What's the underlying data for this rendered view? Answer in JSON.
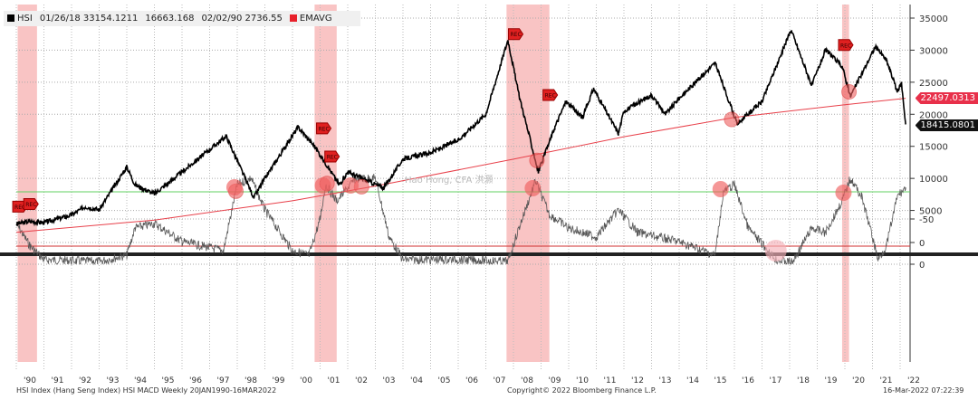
{
  "legend": {
    "series": "HSI",
    "high": "01/26/18 33154.1211",
    "avg": "16663.168",
    "low": "02/02/90 2736.55",
    "ema": "EMAVG"
  },
  "colors": {
    "price": "#000000",
    "ema": "#e8404a",
    "band": "#f7b0b0",
    "green": "#60d060",
    "red": "#d03030"
  },
  "last_labels": {
    "ema": "22497.0313",
    "price": "18415.0801"
  },
  "footer": {
    "left": "HSI Index (Hang Seng Index) HSI MACD  Weekly 20JAN1990-16MAR2022",
    "center": "Copyright© 2022 Bloomberg Finance L.P.",
    "right": "16-Mar-2022 07:22:39"
  },
  "watermark": "Hao Hong, CFA 洪灝",
  "chart_data": [
    {
      "type": "line",
      "title": "HSI",
      "ylim": [
        -1000,
        36000
      ],
      "yticks": [
        0,
        5000,
        10000,
        15000,
        20000,
        25000,
        30000,
        35000
      ],
      "x_tick_labels": [
        "'90",
        "'91",
        "'92",
        "'93",
        "'94",
        "'95",
        "'96",
        "'97",
        "'98",
        "'99",
        "'00",
        "'01",
        "'02",
        "'03",
        "'04",
        "'05",
        "'06",
        "'07",
        "'08",
        "'09",
        "'10",
        "'11",
        "'12",
        "'13",
        "'14",
        "'15",
        "'16",
        "'17",
        "'18",
        "'19",
        "'20",
        "'21",
        "'22"
      ],
      "series": [
        {
          "name": "HSI",
          "points": [
            [
              1990,
              2900
            ],
            [
              1990.5,
              3300
            ],
            [
              1991,
              3100
            ],
            [
              1992,
              4300
            ],
            [
              1992.5,
              5600
            ],
            [
              1993,
              5100
            ],
            [
              1994,
              11800
            ],
            [
              1994.3,
              9000
            ],
            [
              1995,
              7600
            ],
            [
              1996,
              11000
            ],
            [
              1997.6,
              16600
            ],
            [
              1998.6,
              7000
            ],
            [
              1999,
              10000
            ],
            [
              2000.2,
              18000
            ],
            [
              2000.8,
              15000
            ],
            [
              2001.7,
              9000
            ],
            [
              2002,
              11000
            ],
            [
              2003.3,
              8500
            ],
            [
              2004,
              13000
            ],
            [
              2005,
              14000
            ],
            [
              2006,
              16000
            ],
            [
              2007,
              20000
            ],
            [
              2007.8,
              31600
            ],
            [
              2008.2,
              23000
            ],
            [
              2008.9,
              11000
            ],
            [
              2009.5,
              18000
            ],
            [
              2009.9,
              22000
            ],
            [
              2010.5,
              19500
            ],
            [
              2010.9,
              24000
            ],
            [
              2011.8,
              17000
            ],
            [
              2012,
              20500
            ],
            [
              2013,
              23000
            ],
            [
              2013.5,
              20000
            ],
            [
              2014,
              22500
            ],
            [
              2015.3,
              28000
            ],
            [
              2016.1,
              18500
            ],
            [
              2017,
              22000
            ],
            [
              2018.05,
              33154
            ],
            [
              2018.8,
              24500
            ],
            [
              2019.3,
              30000
            ],
            [
              2019.9,
              27500
            ],
            [
              2020.2,
              22800
            ],
            [
              2021.1,
              30500
            ],
            [
              2021.5,
              28500
            ],
            [
              2021.9,
              23500
            ],
            [
              2022.05,
              24900
            ],
            [
              2022.2,
              18415
            ]
          ]
        },
        {
          "name": "EMAVG",
          "points": [
            [
              1990,
              1600
            ],
            [
              1995,
              3500
            ],
            [
              2000,
              6500
            ],
            [
              2003,
              8800
            ],
            [
              2008,
              13000
            ],
            [
              2012,
              16500
            ],
            [
              2016,
              19500
            ],
            [
              2020,
              21500
            ],
            [
              2022.2,
              22497
            ]
          ]
        }
      ],
      "recession_bands": [
        [
          1990.05,
          1990.75
        ],
        [
          2000.8,
          2001.6
        ],
        [
          2007.75,
          2009.3
        ],
        [
          2019.9,
          2020.15
        ]
      ],
      "signal_circles": [
        [
          1997.95,
          8000
        ],
        [
          2001.25,
          9200
        ],
        [
          2002.5,
          8700
        ],
        [
          2008.85,
          12800
        ],
        [
          2015.9,
          19200
        ],
        [
          2020.15,
          23500
        ]
      ],
      "markers": [
        [
          1990.1,
          5600,
          "REC"
        ],
        [
          1990.5,
          6000,
          "REC"
        ],
        [
          2001.1,
          17800,
          "REC"
        ],
        [
          2001.4,
          13400,
          "REC"
        ],
        [
          2008.05,
          32500,
          "REC"
        ],
        [
          2009.3,
          23000,
          "REC"
        ],
        [
          2020,
          30800,
          "REC"
        ]
      ]
    },
    {
      "type": "line",
      "title": "HSI MACD",
      "ylim": [
        -100,
        0
      ],
      "yticks": [
        0,
        -50
      ],
      "upper_threshold": -20,
      "lower_threshold": -80,
      "series": [
        {
          "name": "MACD",
          "points": [
            [
              1990,
              -45
            ],
            [
              1990.5,
              -20
            ],
            [
              1991,
              -5
            ],
            [
              1993,
              -3
            ],
            [
              1994,
              -10
            ],
            [
              1994.3,
              -40
            ],
            [
              1995,
              -45
            ],
            [
              1996,
              -25
            ],
            [
              1997.5,
              -15
            ],
            [
              1998,
              -88
            ],
            [
              1998.5,
              -95
            ],
            [
              1999,
              -60
            ],
            [
              2000,
              -15
            ],
            [
              2000.6,
              -10
            ],
            [
              2001,
              -50
            ],
            [
              2001.2,
              -88
            ],
            [
              2001.6,
              -70
            ],
            [
              2002.3,
              -95
            ],
            [
              2003,
              -95
            ],
            [
              2003.5,
              -30
            ],
            [
              2004,
              -5
            ],
            [
              2006,
              -5
            ],
            [
              2007.8,
              -3
            ],
            [
              2008.2,
              -40
            ],
            [
              2008.8,
              -92
            ],
            [
              2009.3,
              -55
            ],
            [
              2010,
              -40
            ],
            [
              2011,
              -30
            ],
            [
              2011.8,
              -60
            ],
            [
              2012.5,
              -35
            ],
            [
              2014,
              -25
            ],
            [
              2015.3,
              -10
            ],
            [
              2015.6,
              -80
            ],
            [
              2016,
              -88
            ],
            [
              2016.5,
              -40
            ],
            [
              2017.5,
              -5
            ],
            [
              2018.1,
              -2
            ],
            [
              2018.8,
              -40
            ],
            [
              2019.3,
              -35
            ],
            [
              2019.9,
              -70
            ],
            [
              2020.2,
              -95
            ],
            [
              2020.6,
              -75
            ],
            [
              2021.0,
              -30
            ],
            [
              2021.2,
              -5
            ],
            [
              2021.5,
              -20
            ],
            [
              2021.9,
              -75
            ],
            [
              2022.2,
              -85
            ]
          ]
        }
      ],
      "signal_circles": [
        [
          1997.9,
          -85,
          "red"
        ],
        [
          2001.1,
          -87,
          "red"
        ],
        [
          2002.1,
          -87,
          "red"
        ],
        [
          2008.7,
          -84,
          "red"
        ],
        [
          2015.5,
          -83,
          "red"
        ],
        [
          2017.5,
          -15,
          "pink"
        ],
        [
          2019.95,
          -79,
          "red"
        ]
      ]
    }
  ]
}
